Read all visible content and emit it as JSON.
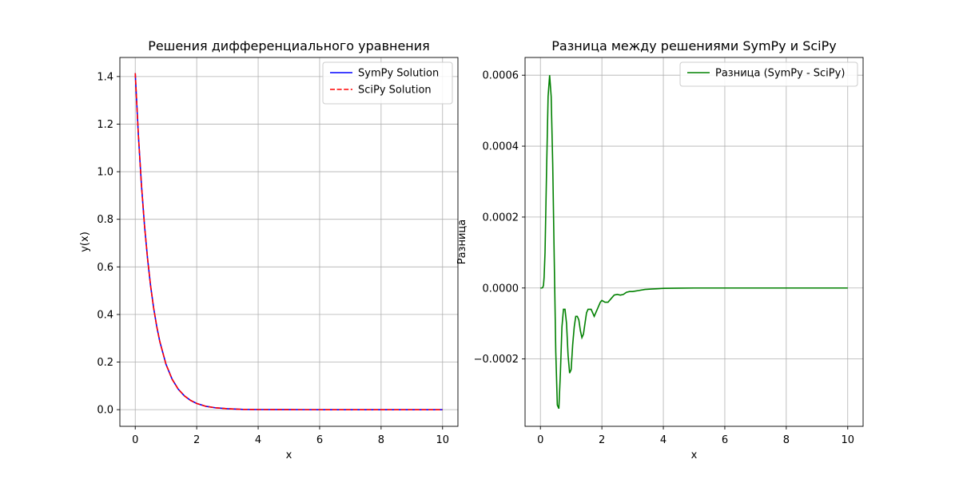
{
  "chart_data": [
    {
      "type": "line",
      "title": "Решения дифференциального уравнения",
      "xlabel": "x",
      "ylabel": "y(x)",
      "xlim": [
        -0.5,
        10.5
      ],
      "ylim": [
        -0.07,
        1.48
      ],
      "x_ticks": [
        0,
        2,
        4,
        6,
        8,
        10
      ],
      "x_tick_labels": [
        "0",
        "2",
        "4",
        "6",
        "8",
        "10"
      ],
      "y_ticks": [
        0.0,
        0.2,
        0.4,
        0.6,
        0.8,
        1.0,
        1.2,
        1.4
      ],
      "y_tick_labels": [
        "0.0",
        "0.2",
        "0.4",
        "0.6",
        "0.8",
        "1.0",
        "1.2",
        "1.4"
      ],
      "grid": true,
      "legend": "top-right",
      "series": [
        {
          "name": "SymPy Solution",
          "color": "#0000ff",
          "dash": "solid",
          "x": [
            0,
            0.1,
            0.2,
            0.3,
            0.4,
            0.5,
            0.6,
            0.7,
            0.8,
            1.0,
            1.2,
            1.4,
            1.6,
            1.8,
            2.0,
            2.3,
            2.6,
            3.0,
            3.5,
            4.0,
            5.0,
            6.0,
            7.0,
            8.0,
            9.0,
            10.0
          ],
          "y": [
            1.414,
            1.158,
            0.948,
            0.776,
            0.636,
            0.52,
            0.426,
            0.349,
            0.286,
            0.191,
            0.128,
            0.086,
            0.058,
            0.039,
            0.026,
            0.014,
            0.008,
            0.004,
            0.001,
            0.0005,
            0.0001,
            0.0,
            0.0,
            0.0,
            0.0,
            0.0
          ]
        },
        {
          "name": "SciPy Solution",
          "color": "#ff0000",
          "dash": "dashed",
          "x": [
            0,
            0.1,
            0.2,
            0.3,
            0.4,
            0.5,
            0.6,
            0.7,
            0.8,
            1.0,
            1.2,
            1.4,
            1.6,
            1.8,
            2.0,
            2.3,
            2.6,
            3.0,
            3.5,
            4.0,
            5.0,
            6.0,
            7.0,
            8.0,
            9.0,
            10.0
          ],
          "y": [
            1.414,
            1.158,
            0.948,
            0.776,
            0.636,
            0.52,
            0.426,
            0.349,
            0.286,
            0.191,
            0.128,
            0.086,
            0.058,
            0.039,
            0.026,
            0.014,
            0.008,
            0.004,
            0.001,
            0.0005,
            0.0001,
            0.0,
            0.0,
            0.0,
            0.0,
            0.0
          ]
        }
      ]
    },
    {
      "type": "line",
      "title": "Разница между решениями SymPy и SciPy",
      "xlabel": "x",
      "ylabel": "Разница",
      "xlim": [
        -0.5,
        10.5
      ],
      "ylim": [
        -0.00039,
        0.00065
      ],
      "x_ticks": [
        0,
        2,
        4,
        6,
        8,
        10
      ],
      "x_tick_labels": [
        "0",
        "2",
        "4",
        "6",
        "8",
        "10"
      ],
      "y_ticks": [
        -0.0002,
        0.0,
        0.0002,
        0.0004,
        0.0006
      ],
      "y_tick_labels": [
        "−0.0002",
        "0.0000",
        "0.0002",
        "0.0004",
        "0.0006"
      ],
      "grid": true,
      "legend": "top-right",
      "series": [
        {
          "name": "Разница (SymPy - SciPy)",
          "color": "#008000",
          "dash": "solid",
          "x": [
            0,
            0.05,
            0.08,
            0.1,
            0.12,
            0.15,
            0.2,
            0.25,
            0.3,
            0.35,
            0.4,
            0.45,
            0.5,
            0.55,
            0.6,
            0.65,
            0.7,
            0.75,
            0.8,
            0.85,
            0.9,
            0.95,
            1.0,
            1.05,
            1.1,
            1.15,
            1.2,
            1.25,
            1.3,
            1.35,
            1.4,
            1.45,
            1.5,
            1.55,
            1.6,
            1.65,
            1.7,
            1.75,
            1.8,
            1.85,
            1.9,
            1.95,
            2.0,
            2.1,
            2.2,
            2.3,
            2.4,
            2.5,
            2.6,
            2.7,
            2.8,
            2.9,
            3.0,
            3.2,
            3.4,
            3.6,
            3.8,
            4.0,
            4.5,
            5.0,
            6.0,
            7.0,
            8.0,
            9.0,
            10.0
          ],
          "y": [
            0.0,
            0.0,
            2e-06,
            8e-06,
            3e-05,
            0.0001,
            0.00033,
            0.00054,
            0.0006,
            0.00054,
            0.00035,
            8e-05,
            -0.00018,
            -0.00033,
            -0.00034,
            -0.00024,
            -0.00011,
            -6e-05,
            -6e-05,
            -0.0001,
            -0.00019,
            -0.00024,
            -0.00023,
            -0.00016,
            -0.00011,
            -8e-05,
            -8e-05,
            -9e-05,
            -0.00012,
            -0.00014,
            -0.00013,
            -0.0001,
            -7e-05,
            -6e-05,
            -6e-05,
            -6e-05,
            -7e-05,
            -8e-05,
            -7e-05,
            -6e-05,
            -5e-05,
            -4e-05,
            -3.5e-05,
            -4e-05,
            -4e-05,
            -3e-05,
            -2e-05,
            -1.8e-05,
            -2e-05,
            -1.8e-05,
            -1.2e-05,
            -1e-05,
            -1e-05,
            -7e-06,
            -4e-06,
            -3e-06,
            -2e-06,
            -1e-06,
            -5e-07,
            0.0,
            0.0,
            0.0,
            0.0,
            0.0,
            0.0
          ]
        }
      ]
    }
  ]
}
